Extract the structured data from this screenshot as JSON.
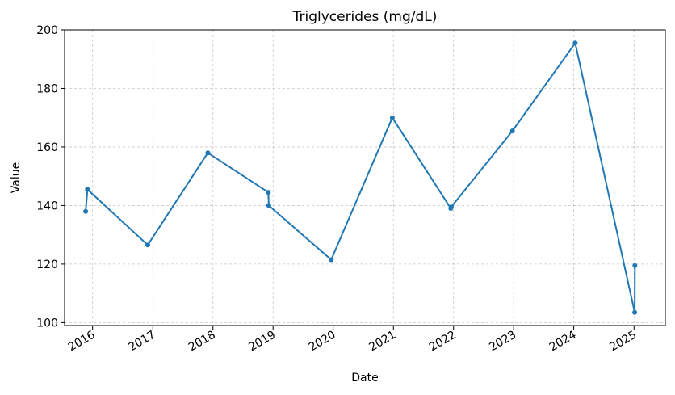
{
  "chart_data": {
    "type": "line",
    "title": "Triglycerides (mg/dL)",
    "xlabel": "Date",
    "ylabel": "Value",
    "ylim": [
      99,
      200
    ],
    "xlim": [
      "2015-07-15",
      "2025-07-10"
    ],
    "grid": true,
    "color": "#1f77b4",
    "yticks": [
      100,
      120,
      140,
      160,
      180,
      200
    ],
    "xticks": [
      {
        "date": "2016-01-01",
        "label": "2016"
      },
      {
        "date": "2017-01-01",
        "label": "2017"
      },
      {
        "date": "2018-01-01",
        "label": "2018"
      },
      {
        "date": "2019-01-01",
        "label": "2019"
      },
      {
        "date": "2020-01-01",
        "label": "2020"
      },
      {
        "date": "2021-01-01",
        "label": "2021"
      },
      {
        "date": "2022-01-01",
        "label": "2022"
      },
      {
        "date": "2023-01-01",
        "label": "2023"
      },
      {
        "date": "2024-01-01",
        "label": "2024"
      },
      {
        "date": "2025-01-01",
        "label": "2025"
      }
    ],
    "series": [
      {
        "x": [
          "2015-11-20",
          "2015-12-01",
          "2016-12-01",
          "2017-12-01",
          "2018-12-03",
          "2018-12-06",
          "2019-12-20",
          "2020-12-25",
          "2021-12-15",
          "2021-12-18",
          "2022-12-25",
          "2024-01-10",
          "2025-01-05",
          "2025-01-06"
        ],
        "y": [
          138,
          145.5,
          126.5,
          158,
          144.5,
          140,
          121.5,
          170,
          139,
          139.5,
          165.5,
          195.5,
          103.5,
          119.5
        ]
      }
    ]
  }
}
